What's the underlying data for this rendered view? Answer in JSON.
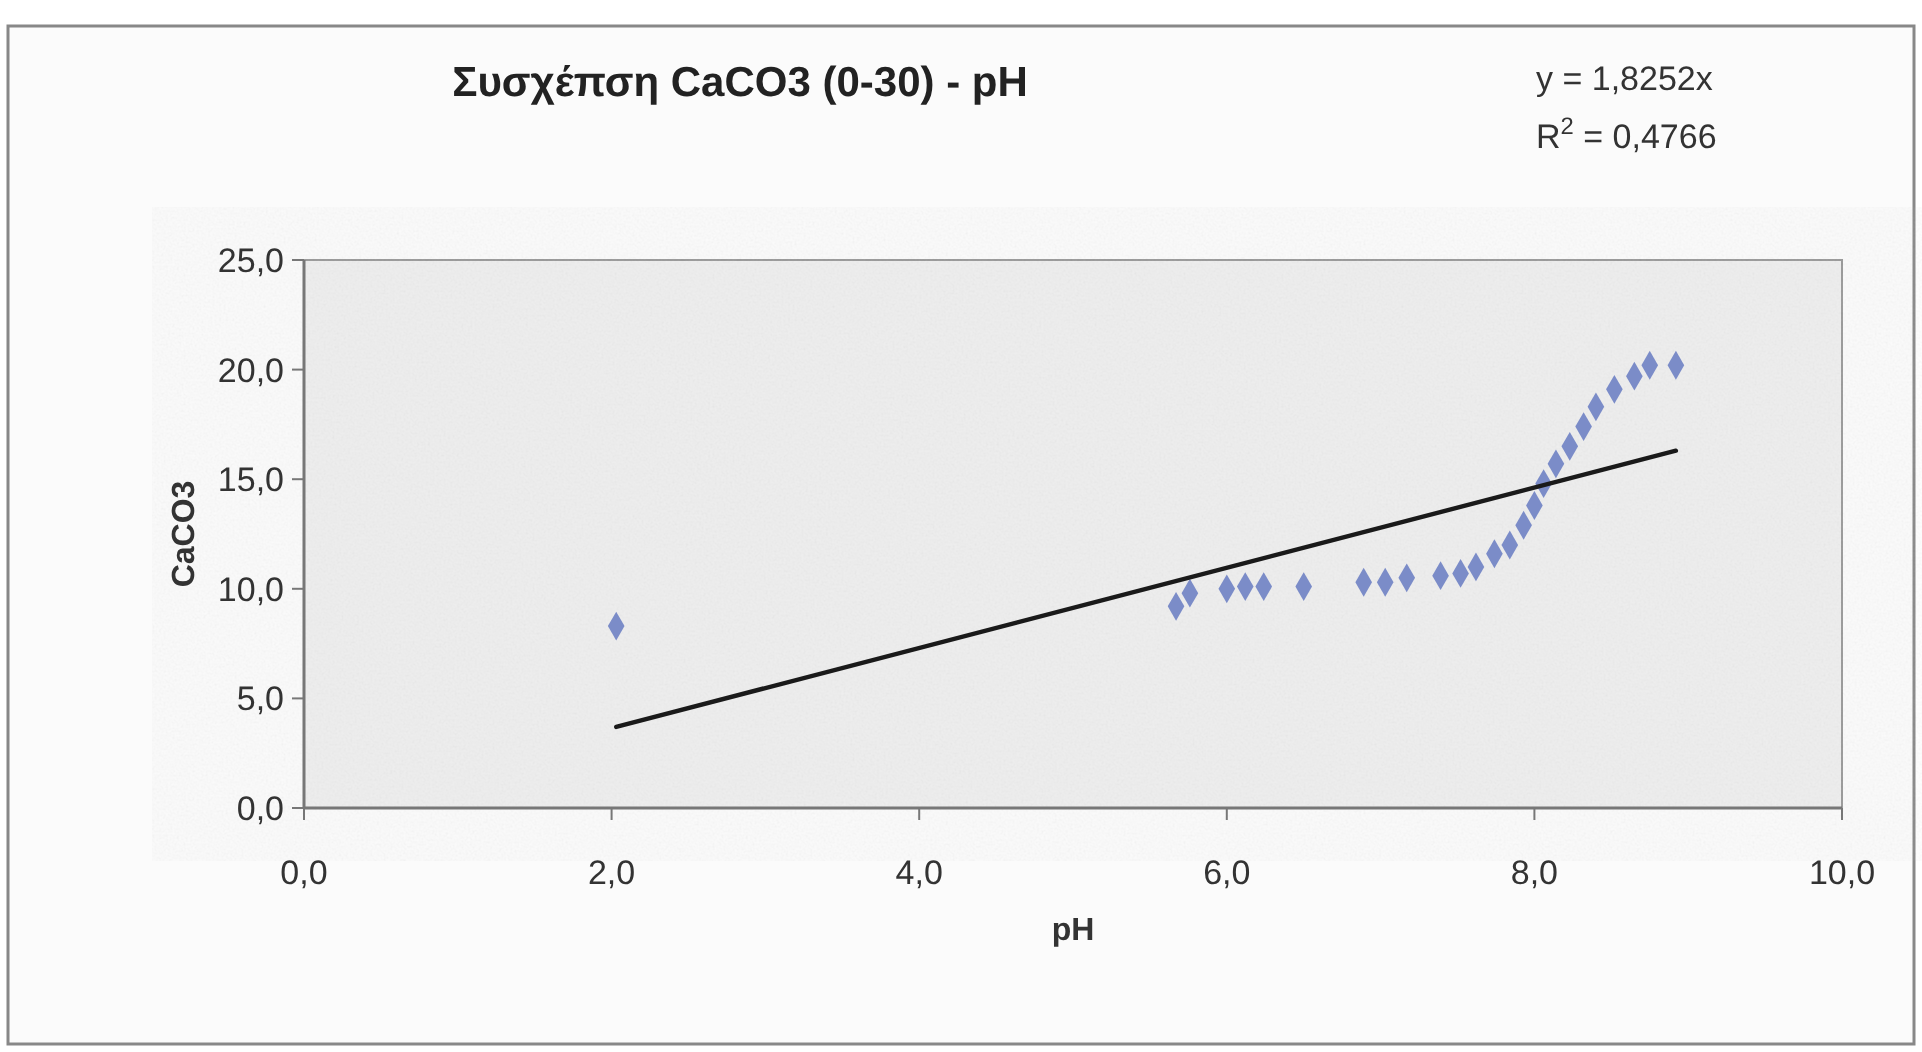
{
  "chart_data": {
    "type": "scatter",
    "title": "Συσχέπση CaCO3 (0-30) - pH",
    "xlabel": "pH",
    "ylabel": "CaCO3",
    "annotations": [
      "y = 1,8252x",
      "R$^{2}$ = 0,4766"
    ],
    "xlim": [
      0,
      10
    ],
    "ylim": [
      0,
      25
    ],
    "xticks": [
      {
        "value": 0,
        "label": "0,0"
      },
      {
        "value": 2,
        "label": "2,0"
      },
      {
        "value": 4,
        "label": "4,0"
      },
      {
        "value": 6,
        "label": "6,0"
      },
      {
        "value": 8,
        "label": "8,0"
      },
      {
        "value": 10,
        "label": "10,0"
      }
    ],
    "yticks": [
      {
        "value": 0,
        "label": "0,0"
      },
      {
        "value": 5,
        "label": "5,0"
      },
      {
        "value": 10,
        "label": "10,0"
      },
      {
        "value": 15,
        "label": "15,0"
      },
      {
        "value": 20,
        "label": "20,0"
      },
      {
        "value": 25,
        "label": "25,0"
      }
    ],
    "grid": false,
    "marker": "diamond",
    "series": [
      {
        "color": "#7b8cc8",
        "x": [
          2.03,
          5.67,
          5.76,
          6.0,
          6.12,
          6.24,
          6.5,
          6.89,
          7.03,
          7.17,
          7.39,
          7.52,
          7.62,
          7.74,
          7.84,
          7.93,
          8.0,
          8.06,
          8.14,
          8.23,
          8.32,
          8.4,
          8.52,
          8.65,
          8.75,
          8.92
        ],
        "values": [
          8.3,
          9.2,
          9.8,
          10.0,
          10.1,
          10.1,
          10.1,
          10.3,
          10.3,
          10.5,
          10.6,
          10.7,
          11.0,
          11.6,
          12.0,
          12.9,
          13.8,
          14.8,
          15.7,
          16.5,
          17.4,
          18.3,
          19.1,
          19.7,
          20.2,
          20.2
        ]
      },
      {
        "type": "line",
        "color": "#1a1a1a",
        "line_style": "solid",
        "marker": "none",
        "x": [
          2.03,
          8.92
        ],
        "values": [
          3.7,
          16.3
        ]
      }
    ]
  }
}
